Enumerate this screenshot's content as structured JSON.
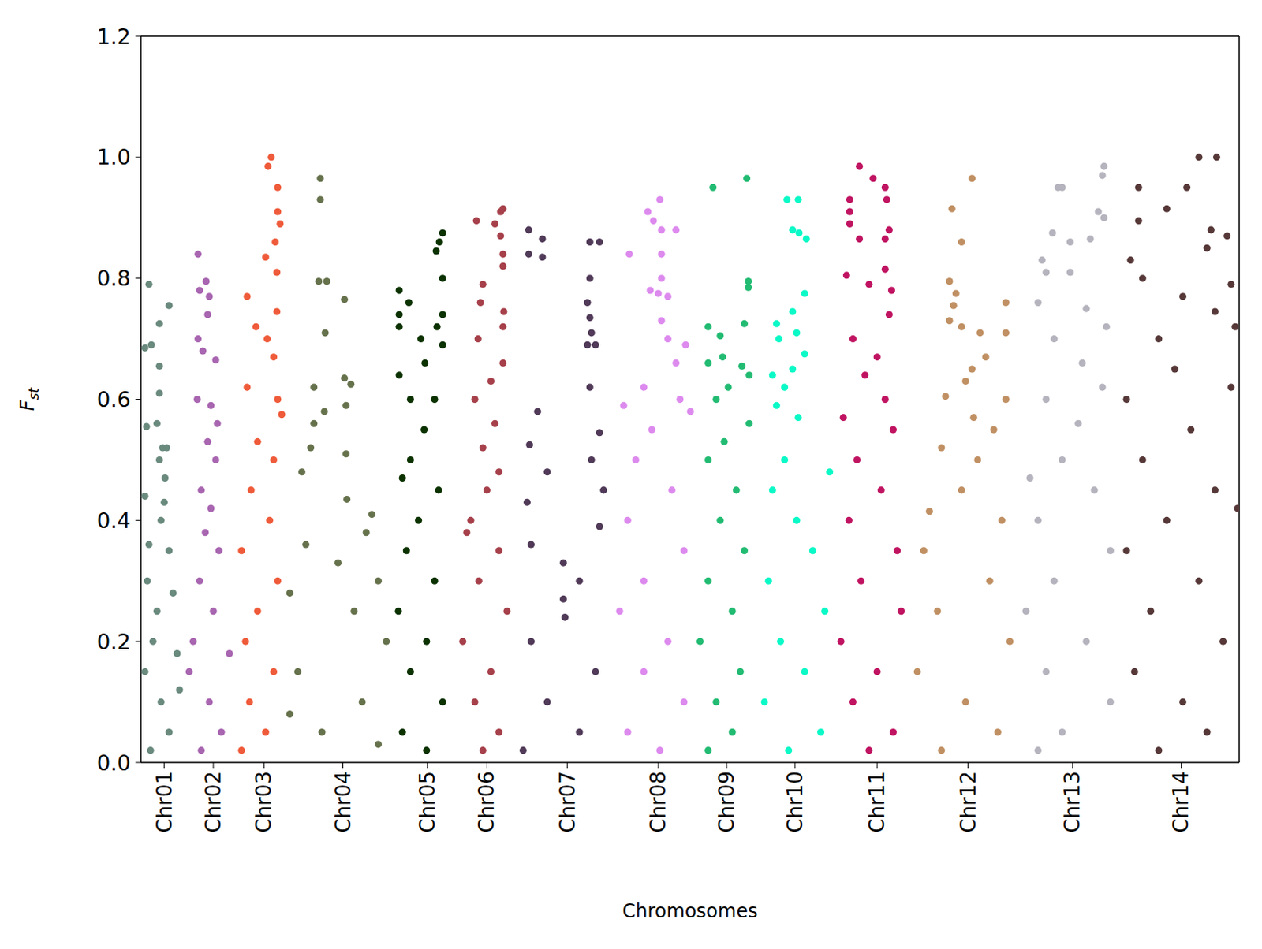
{
  "chart_data": {
    "type": "scatter",
    "x_label": "Chromosomes",
    "y_label": "Fst",
    "xlim": [
      0,
      1365
    ],
    "xticks": [
      {
        "value": 29,
        "label": "Chr01"
      },
      {
        "value": 90,
        "label": "Chr02"
      },
      {
        "value": 153,
        "label": "Chr03"
      },
      {
        "value": 251,
        "label": "Chr04"
      },
      {
        "value": 356,
        "label": "Chr05"
      },
      {
        "value": 430,
        "label": "Chr06"
      },
      {
        "value": 530,
        "label": "Chr07"
      },
      {
        "value": 643,
        "label": "Chr08"
      },
      {
        "value": 728,
        "label": "Chr09"
      },
      {
        "value": 813,
        "label": "Chr10"
      },
      {
        "value": 915,
        "label": "Chr11"
      },
      {
        "value": 1028,
        "label": "Chr12"
      },
      {
        "value": 1158,
        "label": "Chr13"
      },
      {
        "value": 1293,
        "label": "Chr14"
      }
    ],
    "ylim": [
      0,
      1.2
    ],
    "yticks": [
      {
        "value": 0,
        "label": "0.0"
      },
      0.2,
      0.4,
      0.6,
      0.8,
      {
        "value": 1,
        "label": "1.0"
      },
      1.2
    ],
    "grid": false,
    "series": [
      {
        "color": "#6a8a7e",
        "x": [
          10,
          35,
          23,
          13,
          5,
          23,
          23,
          20,
          7,
          27,
          32,
          23,
          30,
          5,
          29,
          25,
          10,
          35,
          8,
          40,
          20,
          15,
          45,
          5,
          25,
          35,
          48,
          12
        ],
        "values": [
          0.79,
          0.755,
          0.725,
          0.69,
          0.685,
          0.655,
          0.61,
          0.56,
          0.555,
          0.52,
          0.52,
          0.5,
          0.47,
          0.44,
          0.43,
          0.4,
          0.36,
          0.35,
          0.3,
          0.28,
          0.25,
          0.2,
          0.18,
          0.15,
          0.1,
          0.05,
          0.12,
          0.02
        ]
      },
      {
        "color": "#a865b0",
        "x": [
          71,
          81,
          73,
          85,
          83,
          71,
          77,
          93,
          70,
          87,
          95,
          83,
          93,
          75,
          87,
          80,
          97,
          73,
          90,
          65,
          110,
          60,
          85,
          100,
          75
        ],
        "values": [
          0.84,
          0.795,
          0.78,
          0.77,
          0.74,
          0.7,
          0.68,
          0.665,
          0.6,
          0.59,
          0.56,
          0.53,
          0.5,
          0.45,
          0.42,
          0.38,
          0.35,
          0.3,
          0.25,
          0.2,
          0.18,
          0.15,
          0.1,
          0.05,
          0.02
        ]
      },
      {
        "color": "#ef5b3a",
        "x": [
          162,
          158,
          170,
          170,
          173,
          167,
          155,
          169,
          132,
          169,
          143,
          157,
          165,
          132,
          170,
          175,
          145,
          165,
          137,
          160,
          125,
          170,
          145,
          130,
          165,
          135,
          155,
          125
        ],
        "values": [
          1.0,
          0.985,
          0.95,
          0.91,
          0.89,
          0.86,
          0.835,
          0.81,
          0.77,
          0.745,
          0.72,
          0.7,
          0.67,
          0.62,
          0.6,
          0.575,
          0.53,
          0.5,
          0.45,
          0.4,
          0.35,
          0.3,
          0.25,
          0.2,
          0.15,
          0.1,
          0.05,
          0.02
        ]
      },
      {
        "color": "#66724c",
        "x": [
          223,
          223,
          221,
          231,
          253,
          229,
          253,
          261,
          215,
          255,
          228,
          215,
          211,
          255,
          200,
          256,
          287,
          280,
          205,
          245,
          295,
          185,
          265,
          305,
          195,
          275,
          225,
          185,
          295
        ],
        "values": [
          0.965,
          0.93,
          0.795,
          0.795,
          0.765,
          0.71,
          0.635,
          0.625,
          0.62,
          0.59,
          0.58,
          0.56,
          0.52,
          0.51,
          0.48,
          0.435,
          0.41,
          0.38,
          0.36,
          0.33,
          0.3,
          0.28,
          0.25,
          0.2,
          0.15,
          0.1,
          0.05,
          0.08,
          0.03
        ]
      },
      {
        "color": "#0b3200",
        "x": [
          375,
          371,
          367,
          375,
          321,
          333,
          321,
          321,
          375,
          368,
          348,
          375,
          353,
          321,
          335,
          365,
          352,
          335,
          325,
          370,
          345,
          330,
          365,
          320,
          355,
          335,
          375,
          325,
          355
        ],
        "values": [
          0.875,
          0.86,
          0.845,
          0.8,
          0.78,
          0.76,
          0.74,
          0.72,
          0.74,
          0.72,
          0.7,
          0.69,
          0.66,
          0.64,
          0.6,
          0.6,
          0.55,
          0.5,
          0.47,
          0.45,
          0.4,
          0.35,
          0.3,
          0.25,
          0.2,
          0.15,
          0.1,
          0.05,
          0.02
        ]
      },
      {
        "color": "#a6404a",
        "x": [
          450,
          447,
          417,
          440,
          447,
          450,
          425,
          450,
          422,
          451,
          450,
          419,
          450,
          435,
          415,
          440,
          425,
          445,
          430,
          410,
          405,
          445,
          420,
          455,
          400,
          435,
          415,
          445,
          425
        ],
        "values": [
          0.915,
          0.91,
          0.895,
          0.89,
          0.87,
          0.84,
          0.79,
          0.82,
          0.76,
          0.745,
          0.72,
          0.7,
          0.66,
          0.63,
          0.6,
          0.56,
          0.52,
          0.48,
          0.45,
          0.4,
          0.38,
          0.35,
          0.3,
          0.25,
          0.2,
          0.15,
          0.1,
          0.05,
          0.02
        ]
      },
      {
        "color": "#503a58",
        "x": [
          482,
          499,
          558,
          570,
          482,
          499,
          558,
          555,
          558,
          560,
          555,
          565,
          558,
          493,
          570,
          483,
          560,
          505,
          575,
          480,
          570,
          485,
          525,
          545,
          525,
          527,
          485,
          565,
          505,
          545,
          475
        ],
        "values": [
          0.88,
          0.865,
          0.86,
          0.86,
          0.84,
          0.835,
          0.8,
          0.76,
          0.735,
          0.71,
          0.69,
          0.69,
          0.62,
          0.58,
          0.545,
          0.525,
          0.5,
          0.48,
          0.45,
          0.43,
          0.39,
          0.36,
          0.33,
          0.3,
          0.27,
          0.24,
          0.2,
          0.15,
          0.1,
          0.05,
          0.02
        ]
      },
      {
        "color": "#dd8aee",
        "x": [
          645,
          630,
          637,
          647,
          665,
          607,
          647,
          647,
          633,
          643,
          655,
          647,
          655,
          677,
          665,
          625,
          670,
          600,
          683,
          635,
          615,
          660,
          605,
          675,
          625,
          595,
          655,
          625,
          675,
          605,
          645
        ],
        "values": [
          0.93,
          0.91,
          0.895,
          0.88,
          0.88,
          0.84,
          0.84,
          0.8,
          0.78,
          0.775,
          0.77,
          0.73,
          0.7,
          0.69,
          0.66,
          0.62,
          0.6,
          0.59,
          0.58,
          0.55,
          0.5,
          0.45,
          0.4,
          0.35,
          0.3,
          0.25,
          0.2,
          0.15,
          0.1,
          0.05,
          0.02
        ]
      },
      {
        "color": "#22bb72",
        "x": [
          753,
          711,
          755,
          755,
          750,
          705,
          720,
          723,
          705,
          747,
          756,
          730,
          715,
          756,
          725,
          705,
          740,
          720,
          750,
          705,
          735,
          695,
          745,
          715,
          735,
          705
        ],
        "values": [
          0.965,
          0.95,
          0.795,
          0.785,
          0.725,
          0.72,
          0.705,
          0.67,
          0.66,
          0.655,
          0.64,
          0.62,
          0.6,
          0.56,
          0.53,
          0.5,
          0.45,
          0.4,
          0.35,
          0.3,
          0.25,
          0.2,
          0.15,
          0.1,
          0.05,
          0.02
        ]
      },
      {
        "color": "#0af9c7",
        "x": [
          803,
          817,
          810,
          818,
          827,
          825,
          810,
          790,
          815,
          793,
          825,
          810,
          785,
          800,
          790,
          817,
          800,
          856,
          785,
          815,
          835,
          780,
          850,
          795,
          825,
          775,
          845,
          805
        ],
        "values": [
          0.93,
          0.93,
          0.88,
          0.875,
          0.865,
          0.775,
          0.745,
          0.725,
          0.71,
          0.7,
          0.675,
          0.65,
          0.64,
          0.62,
          0.59,
          0.57,
          0.5,
          0.48,
          0.45,
          0.4,
          0.35,
          0.3,
          0.25,
          0.2,
          0.15,
          0.1,
          0.05,
          0.02
        ]
      },
      {
        "color": "#c01361",
        "x": [
          893,
          910,
          925,
          881,
          927,
          881,
          881,
          930,
          893,
          925,
          925,
          877,
          905,
          933,
          930,
          885,
          915,
          900,
          925,
          873,
          935,
          890,
          920,
          880,
          940,
          895,
          945,
          870,
          915,
          885,
          935,
          905
        ],
        "values": [
          0.985,
          0.965,
          0.95,
          0.93,
          0.93,
          0.91,
          0.89,
          0.88,
          0.865,
          0.865,
          0.815,
          0.805,
          0.79,
          0.78,
          0.74,
          0.7,
          0.67,
          0.64,
          0.6,
          0.57,
          0.55,
          0.5,
          0.45,
          0.4,
          0.35,
          0.3,
          0.25,
          0.2,
          0.15,
          0.1,
          0.05,
          0.02
        ]
      },
      {
        "color": "#c09063",
        "x": [
          1033,
          1008,
          1020,
          1005,
          1013,
          1075,
          1010,
          1005,
          1020,
          1043,
          1075,
          1050,
          1033,
          1025,
          1000,
          1075,
          1035,
          1060,
          995,
          1040,
          1020,
          980,
          1070,
          973,
          1055,
          990,
          1080,
          965,
          1025,
          1065,
          995
        ],
        "values": [
          0.965,
          0.915,
          0.86,
          0.795,
          0.775,
          0.76,
          0.755,
          0.73,
          0.72,
          0.71,
          0.71,
          0.67,
          0.65,
          0.63,
          0.605,
          0.6,
          0.57,
          0.55,
          0.52,
          0.5,
          0.45,
          0.415,
          0.4,
          0.35,
          0.3,
          0.25,
          0.2,
          0.15,
          0.1,
          0.05,
          0.02
        ]
      },
      {
        "color": "#b5b3bd",
        "x": [
          1197,
          1195,
          1140,
          1145,
          1190,
          1197,
          1133,
          1180,
          1155,
          1120,
          1125,
          1155,
          1115,
          1175,
          1200,
          1135,
          1170,
          1195,
          1125,
          1165,
          1145,
          1105,
          1185,
          1115,
          1205,
          1135,
          1100,
          1175,
          1125,
          1205,
          1145,
          1115
        ],
        "values": [
          0.985,
          0.97,
          0.95,
          0.95,
          0.91,
          0.9,
          0.875,
          0.865,
          0.86,
          0.83,
          0.81,
          0.81,
          0.76,
          0.75,
          0.72,
          0.7,
          0.66,
          0.62,
          0.6,
          0.56,
          0.5,
          0.47,
          0.45,
          0.4,
          0.35,
          0.3,
          0.25,
          0.2,
          0.15,
          0.1,
          0.05,
          0.02
        ]
      },
      {
        "color": "#573838",
        "x": [
          1315,
          1337,
          1240,
          1300,
          1275,
          1240,
          1330,
          1350,
          1325,
          1230,
          1245,
          1355,
          1295,
          1335,
          1360,
          1265,
          1285,
          1355,
          1225,
          1305,
          1245,
          1335,
          1363,
          1275,
          1225,
          1315,
          1255,
          1345,
          1235,
          1295,
          1325,
          1265
        ],
        "values": [
          1.0,
          1.0,
          0.95,
          0.95,
          0.915,
          0.895,
          0.88,
          0.87,
          0.85,
          0.83,
          0.8,
          0.79,
          0.77,
          0.745,
          0.72,
          0.7,
          0.65,
          0.62,
          0.6,
          0.55,
          0.5,
          0.45,
          0.42,
          0.4,
          0.35,
          0.3,
          0.25,
          0.2,
          0.15,
          0.1,
          0.05,
          0.02
        ]
      }
    ]
  }
}
